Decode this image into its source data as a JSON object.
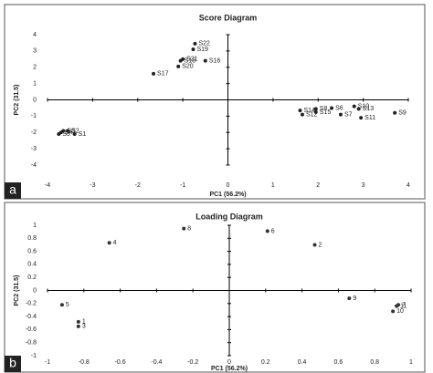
{
  "chart_data": [
    {
      "type": "scatter",
      "title": "Score Diagram",
      "panel_label": "a",
      "xlabel": "PC1 (56.2%)",
      "ylabel": "PC2 (31.5)",
      "xlim": [
        -4,
        4
      ],
      "ylim": [
        -4,
        4
      ],
      "xticks": [
        -4,
        -3,
        -2,
        -1,
        0,
        1,
        2,
        3,
        4
      ],
      "yticks": [
        -4,
        -3,
        -2,
        -1,
        0,
        1,
        2,
        3,
        4
      ],
      "color": "#222222",
      "point_labels": [
        "S22",
        "S19",
        "S18",
        "S21",
        "S16",
        "S20",
        "S17",
        "S14",
        "S12",
        "S8",
        "S15",
        "S6",
        "S7",
        "S10",
        "S13",
        "S11",
        "S9",
        "S1",
        "S2",
        "S3",
        "S4",
        "S5"
      ],
      "x": [
        -0.73,
        -0.77,
        -1.05,
        -1.0,
        -0.5,
        -1.1,
        -1.65,
        1.6,
        1.65,
        1.95,
        1.95,
        2.3,
        2.5,
        2.8,
        2.9,
        2.95,
        3.7,
        -3.4,
        -3.55,
        -3.65,
        -3.7,
        -3.75
      ],
      "values": [
        3.45,
        3.1,
        2.4,
        2.5,
        2.4,
        2.05,
        1.6,
        -0.65,
        -0.9,
        -0.55,
        -0.75,
        -0.5,
        -0.9,
        -0.4,
        -0.55,
        -1.1,
        -0.8,
        -2.1,
        -1.9,
        -1.9,
        -2.0,
        -2.1
      ]
    },
    {
      "type": "scatter",
      "title": "Loading Diagram",
      "panel_label": "b",
      "xlabel": "PC1 (56.2%)",
      "ylabel": "PC2 (31.5)",
      "xlim": [
        -1,
        1
      ],
      "ylim": [
        -1,
        1
      ],
      "xticks": [
        -1,
        -0.8,
        -0.6,
        -0.4,
        -0.2,
        0,
        0.2,
        0.4,
        0.6,
        0.8,
        1
      ],
      "yticks": [
        -1,
        -0.8,
        -0.6,
        -0.4,
        -0.2,
        0,
        0.2,
        0.4,
        0.6,
        0.8,
        1
      ],
      "color": "#333333",
      "point_labels": [
        "8",
        "6",
        "2",
        "4",
        "9",
        "5",
        "1",
        "3",
        "7",
        "11",
        "10"
      ],
      "x": [
        -0.25,
        0.21,
        0.47,
        -0.66,
        0.66,
        -0.92,
        -0.83,
        -0.83,
        0.93,
        0.92,
        0.9
      ],
      "values": [
        0.95,
        0.91,
        0.7,
        0.73,
        -0.12,
        -0.22,
        -0.48,
        -0.55,
        -0.22,
        -0.24,
        -0.32
      ]
    }
  ]
}
